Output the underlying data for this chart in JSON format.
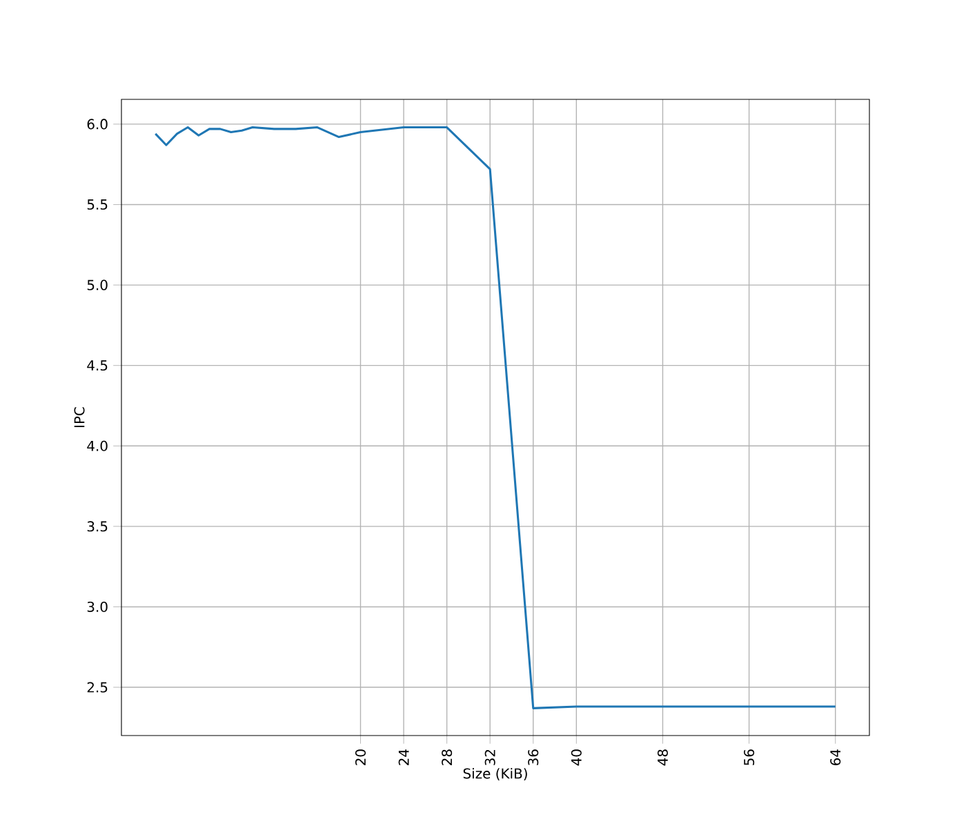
{
  "chart_data": {
    "type": "line",
    "xlabel": "Size (KiB)",
    "ylabel": "IPC",
    "x": [
      1,
      2,
      3,
      4,
      5,
      6,
      7,
      8,
      9,
      10,
      12,
      14,
      16,
      18,
      20,
      24,
      28,
      32,
      36,
      40,
      48,
      56,
      64
    ],
    "series": [
      {
        "color": "#1f77b4",
        "values": [
          5.94,
          5.87,
          5.94,
          5.98,
          5.93,
          5.97,
          5.97,
          5.95,
          5.96,
          5.98,
          5.97,
          5.97,
          5.98,
          5.92,
          5.95,
          5.98,
          5.98,
          5.72,
          2.37,
          2.38,
          2.38,
          2.38,
          2.38
        ]
      }
    ],
    "xlim": [
      -2.15,
      67.15
    ],
    "ylim": [
      2.2,
      6.154
    ],
    "xticks": [
      20,
      24,
      28,
      32,
      36,
      40,
      48,
      56,
      64
    ],
    "yticks": [
      2.5,
      {
        "value": 3,
        "label": "3.0"
      },
      3.5,
      {
        "value": 4,
        "label": "4.0"
      },
      4.5,
      {
        "value": 5,
        "label": "5.0"
      },
      5.5,
      {
        "value": 6,
        "label": "6.0"
      }
    ],
    "grid": true
  }
}
